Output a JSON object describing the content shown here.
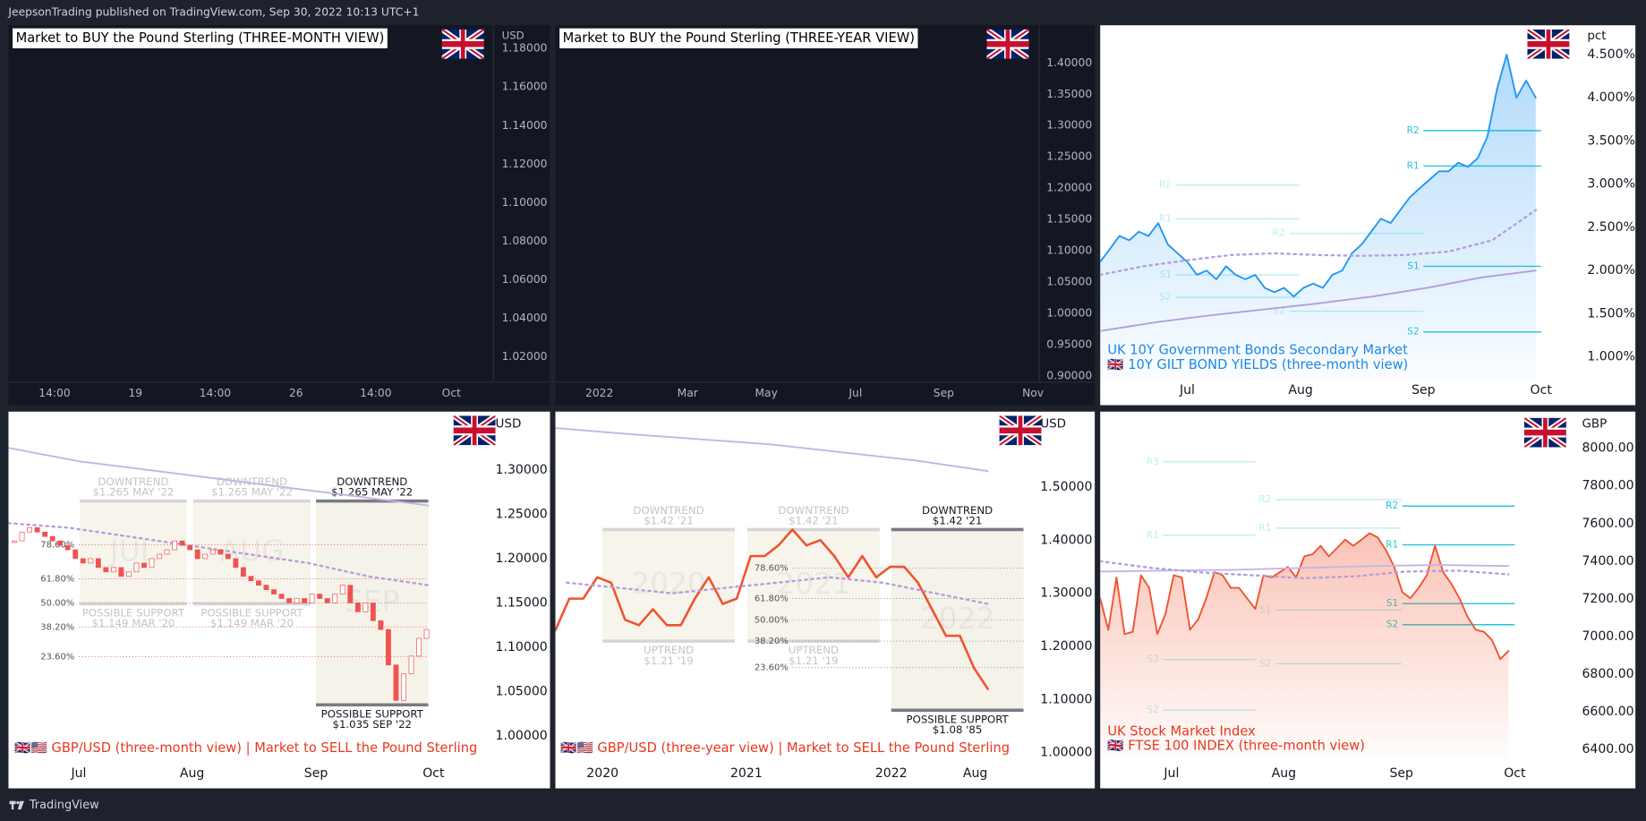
{
  "header": {
    "text": "JeepsonTrading published on TradingView.com, Sep 30, 2022 10:13 UTC+1"
  },
  "footer": {
    "brand": "TradingView"
  },
  "panels": [
    {
      "theme": "dark",
      "title": "Market to BUY the Pound Sterling (THREE-MONTH VIEW)",
      "unit": "USD",
      "ylim": [
        1.0069,
        1.1921
      ],
      "yticks": [
        {
          "value": 1.18,
          "label": "1.18000"
        },
        {
          "value": 1.16,
          "label": "1.16000"
        },
        {
          "value": 1.14,
          "label": "1.14000"
        },
        {
          "value": 1.12,
          "label": "1.12000"
        },
        {
          "value": 1.1,
          "label": "1.10000"
        },
        {
          "value": 1.08,
          "label": "1.08000"
        },
        {
          "value": 1.06,
          "label": "1.06000"
        },
        {
          "value": 1.04,
          "label": "1.04000"
        },
        {
          "value": 1.02,
          "label": "1.02000"
        }
      ],
      "xticks": [
        "14:00",
        "19",
        "14:00",
        "26",
        "14:00",
        "Oct"
      ]
    },
    {
      "theme": "dark",
      "title": "Market to BUY the Pound Sterling (THREE-YEAR VIEW)",
      "ylim": [
        0.8899,
        1.4604
      ],
      "yticks": [
        {
          "value": 1.4,
          "label": "1.40000"
        },
        {
          "value": 1.35,
          "label": "1.35000"
        },
        {
          "value": 1.3,
          "label": "1.30000"
        },
        {
          "value": 1.25,
          "label": "1.25000"
        },
        {
          "value": 1.2,
          "label": "1.20000"
        },
        {
          "value": 1.15,
          "label": "1.15000"
        },
        {
          "value": 1.1,
          "label": "1.10000"
        },
        {
          "value": 1.05,
          "label": "1.05000"
        },
        {
          "value": 1,
          "label": "1.00000"
        },
        {
          "value": 0.95,
          "label": "0.95000"
        },
        {
          "value": 0.9,
          "label": "0.90000"
        }
      ],
      "xticks": [
        "2022",
        "Mar",
        "May",
        "Jul",
        "Sep",
        "Nov"
      ]
    },
    {
      "theme": "light",
      "unit": "pct",
      "ylim": [
        0.733,
        4.84
      ],
      "yticks": [
        {
          "value": 4.5,
          "label": "4.500%"
        },
        {
          "value": 4,
          "label": "4.000%"
        },
        {
          "value": 3.5,
          "label": "3.500%"
        },
        {
          "value": 3,
          "label": "3.000%"
        },
        {
          "value": 2.5,
          "label": "2.500%"
        },
        {
          "value": 2,
          "label": "2.000%"
        },
        {
          "value": 1.5,
          "label": "1.500%"
        },
        {
          "value": 1,
          "label": "1.000%"
        }
      ],
      "xticks": [
        "Jul",
        "Aug",
        "Sep",
        "Oct"
      ],
      "captions": [
        "UK 10Y Government Bonds Secondary Market",
        "🇬🇧 10Y GILT BOND YIELDS (three-month view)"
      ],
      "caption_color": "#1e88e5",
      "series": [
        {
          "color": "#2196f3",
          "style": "solid",
          "area": true,
          "values": [
            2.1,
            2.25,
            2.4,
            2.35,
            2.45,
            2.4,
            2.55,
            2.3,
            2.2,
            2.1,
            1.95,
            2.0,
            1.9,
            2.05,
            1.95,
            1.9,
            1.95,
            1.8,
            1.75,
            1.8,
            1.7,
            1.8,
            1.85,
            1.8,
            1.95,
            2.0,
            2.2,
            2.3,
            2.45,
            2.6,
            2.55,
            2.7,
            2.85,
            2.95,
            3.05,
            3.15,
            3.15,
            3.25,
            3.2,
            3.3,
            3.55,
            4.1,
            4.5,
            4.0,
            4.2,
            4.0
          ]
        },
        {
          "color": "#b39ddb",
          "style": "dotted",
          "values": [
            1.95,
            2.05,
            2.12,
            2.18,
            2.2,
            2.18,
            2.17,
            2.18,
            2.22,
            2.35,
            2.7
          ]
        },
        {
          "color": "#b39ddb",
          "style": "solid",
          "values": [
            1.3,
            1.4,
            1.48,
            1.55,
            1.62,
            1.7,
            1.8,
            1.92,
            2.0
          ]
        }
      ],
      "pivot_color": "#26c6da",
      "pivots": [
        {
          "faded": true,
          "labels": [
            "R2",
            "R1",
            "S1",
            "S2"
          ],
          "values": [
            2.99,
            2.6,
            1.95,
            1.69
          ]
        },
        {
          "faded": true,
          "labels": [
            "R2",
            "S2"
          ],
          "values": [
            2.43,
            1.53
          ]
        },
        {
          "faded": false,
          "labels": [
            "R2",
            "R1",
            "S1",
            "S2"
          ],
          "values": [
            3.62,
            3.21,
            2.05,
            1.29
          ]
        }
      ]
    },
    {
      "theme": "light",
      "unit": "USD",
      "ylim": [
        0.975,
        1.366
      ],
      "yticks": [
        {
          "value": 1.3,
          "label": "1.30000"
        },
        {
          "value": 1.25,
          "label": "1.25000"
        },
        {
          "value": 1.2,
          "label": "1.20000"
        },
        {
          "value": 1.15,
          "label": "1.15000"
        },
        {
          "value": 1.1,
          "label": "1.10000"
        },
        {
          "value": 1.05,
          "label": "1.05000"
        },
        {
          "value": 1,
          "label": "1.00000"
        }
      ],
      "xticks": [
        "Jul",
        "Aug",
        "Sep",
        "Oct"
      ],
      "captions": [
        "🇬🇧🇺🇸 GBP/USD (three-month view) | Market to SELL the Pound Sterling"
      ],
      "caption_color": "#e5391f",
      "series": [
        {
          "color": "#c5b3e6",
          "style": "solid",
          "values": [
            1.325,
            1.31,
            1.3,
            1.29,
            1.28,
            1.27,
            1.26
          ]
        },
        {
          "color": "#b39ddb",
          "style": "dotted",
          "values": [
            1.24,
            1.235,
            1.225,
            1.215,
            1.205,
            1.195,
            1.18,
            1.17
          ]
        }
      ],
      "candles": {
        "up_color": "#ffffff",
        "down_color": "#ef5350",
        "values": [
          1.22,
          1.23,
          1.235,
          1.23,
          1.225,
          1.22,
          1.215,
          1.21,
          1.2,
          1.195,
          1.2,
          1.19,
          1.185,
          1.19,
          1.18,
          1.185,
          1.195,
          1.19,
          1.2,
          1.205,
          1.21,
          1.22,
          1.215,
          1.21,
          1.2,
          1.205,
          1.21,
          1.205,
          1.2,
          1.19,
          1.18,
          1.175,
          1.17,
          1.165,
          1.16,
          1.155,
          1.15,
          1.155,
          1.15,
          1.16,
          1.155,
          1.15,
          1.16,
          1.17,
          1.15,
          1.14,
          1.15,
          1.13,
          1.12,
          1.08,
          1.04,
          1.07,
          1.09,
          1.11,
          1.12
        ]
      },
      "boxes": [
        {
          "faded": true,
          "high": 1.265,
          "low": 1.149,
          "watermark": "JUL",
          "top_label": [
            "DOWNTREND",
            "$1.265 MAY '22"
          ],
          "bottom_label": [
            "POSSIBLE SUPPORT",
            "$1.149 MAR '20"
          ]
        },
        {
          "faded": true,
          "high": 1.265,
          "low": 1.149,
          "watermark": "AUG",
          "top_label": [
            "DOWNTREND",
            "$1.265 MAY '22"
          ],
          "bottom_label": [
            "POSSIBLE SUPPORT",
            "$1.149 MAR '20"
          ]
        },
        {
          "faded": false,
          "high": 1.265,
          "low": 1.035,
          "watermark": "SEP",
          "top_label": [
            "DOWNTREND",
            "$1.265 MAY '22"
          ],
          "bottom_label": [
            "POSSIBLE SUPPORT",
            "$1.035 SEP '22"
          ]
        }
      ],
      "fibs": {
        "box": 2,
        "color": "#e57373",
        "levels": [
          {
            "value": 78.6,
            "label": "78.60%"
          },
          {
            "value": 61.8,
            "label": "61.80%"
          },
          {
            "value": 50,
            "label": "50.00%"
          },
          {
            "value": 38.2,
            "label": "38.20%"
          },
          {
            "value": 23.6,
            "label": "23.60%"
          }
        ]
      }
    },
    {
      "theme": "light",
      "unit": "USD",
      "ylim": [
        0.99,
        1.642
      ],
      "yticks": [
        {
          "value": 1.5,
          "label": "1.50000"
        },
        {
          "value": 1.4,
          "label": "1.40000"
        },
        {
          "value": 1.3,
          "label": "1.30000"
        },
        {
          "value": 1.2,
          "label": "1.20000"
        },
        {
          "value": 1.1,
          "label": "1.10000"
        },
        {
          "value": 1,
          "label": "1.00000"
        }
      ],
      "xticks": [
        "2020",
        "2021",
        "2022",
        "Aug"
      ],
      "captions": [
        "🇬🇧🇺🇸 GBP/USD (three-year view) | Market to SELL the Pound Sterling"
      ],
      "caption_color": "#e5391f",
      "series": [
        {
          "color": "#f0532f",
          "style": "solid",
          "width": 2.2,
          "values": [
            1.23,
            1.29,
            1.29,
            1.33,
            1.32,
            1.25,
            1.24,
            1.27,
            1.24,
            1.24,
            1.29,
            1.33,
            1.28,
            1.29,
            1.37,
            1.37,
            1.39,
            1.42,
            1.39,
            1.4,
            1.37,
            1.33,
            1.37,
            1.33,
            1.35,
            1.35,
            1.32,
            1.27,
            1.22,
            1.22,
            1.16,
            1.12
          ]
        },
        {
          "color": "#c5b3e6",
          "style": "solid",
          "values": [
            1.611,
            1.6,
            1.59,
            1.58,
            1.565,
            1.55,
            1.53
          ]
        },
        {
          "color": "#b39ddb",
          "style": "dotted",
          "values": [
            1.32,
            1.31,
            1.3,
            1.31,
            1.32,
            1.33,
            1.32,
            1.3,
            1.28
          ]
        }
      ],
      "boxes": [
        {
          "faded": true,
          "high": 1.42,
          "low": 1.21,
          "watermark": "2020",
          "top_label": [
            "DOWNTREND",
            "$1.42 '21"
          ],
          "bottom_label": [
            "UPTREND",
            "$1.21 '19"
          ]
        },
        {
          "faded": true,
          "high": 1.42,
          "low": 1.21,
          "watermark": "2021",
          "top_label": [
            "DOWNTREND",
            "$1.42 '21"
          ],
          "bottom_label": [
            "UPTREND",
            "$1.21 '19"
          ]
        },
        {
          "faded": false,
          "high": 1.42,
          "low": 1.08,
          "watermark": "2022",
          "top_label": [
            "DOWNTREND",
            "$1.42 '21"
          ],
          "bottom_label": [
            "POSSIBLE SUPPORT",
            "$1.08 '85"
          ]
        }
      ],
      "fibs": {
        "box": 2,
        "color": "#9e9e9e",
        "levels": [
          {
            "value": 78.6,
            "label": "78.60%"
          },
          {
            "value": 61.8,
            "label": "61.80%"
          },
          {
            "value": 50,
            "label": "50.00%"
          },
          {
            "value": 38.2,
            "label": "38.20%"
          },
          {
            "value": 23.6,
            "label": "23.60%"
          }
        ]
      }
    },
    {
      "theme": "light",
      "unit": "GBP",
      "ylim": [
        6355,
        8195
      ],
      "yticks": [
        {
          "value": 8000,
          "label": "8000.00"
        },
        {
          "value": 7800,
          "label": "7800.00"
        },
        {
          "value": 7600,
          "label": "7600.00"
        },
        {
          "value": 7400,
          "label": "7400.00"
        },
        {
          "value": 7200,
          "label": "7200.00"
        },
        {
          "value": 7000,
          "label": "7000.00"
        },
        {
          "value": 6800,
          "label": "6800.00"
        },
        {
          "value": 6600,
          "label": "6600.00"
        },
        {
          "value": 6400,
          "label": "6400.00"
        }
      ],
      "xticks": [
        "Jul",
        "Aug",
        "Sep",
        "Oct"
      ],
      "captions": [
        "UK Stock Market Index",
        "🇬🇧 FTSE 100 INDEX (three-month view)"
      ],
      "caption_color": "#e5391f",
      "series": [
        {
          "color": "#f0532f",
          "style": "solid",
          "area": true,
          "values": [
            7203,
            7036,
            7314,
            7013,
            7025,
            7326,
            7259,
            7013,
            7119,
            7326,
            7314,
            7036,
            7091,
            7203,
            7342,
            7326,
            7259,
            7259,
            7203,
            7147,
            7326,
            7314,
            7342,
            7370,
            7314,
            7426,
            7437,
            7482,
            7426,
            7470,
            7515,
            7482,
            7515,
            7549,
            7526,
            7459,
            7370,
            7236,
            7203,
            7259,
            7326,
            7482,
            7342,
            7281,
            7203,
            7103,
            7036,
            7025,
            6980,
            6880,
            6924
          ]
        },
        {
          "color": "#c5b3e6",
          "style": "solid",
          "values": [
            7345,
            7350,
            7355,
            7365,
            7375,
            7380,
            7375
          ]
        },
        {
          "color": "#b39ddb",
          "style": "dotted",
          "values": [
            7400,
            7365,
            7340,
            7325,
            7310,
            7320,
            7345,
            7350,
            7330
          ]
        }
      ],
      "pivot_color": "#26c6da",
      "pivots": [
        {
          "faded": true,
          "labels": [
            "R3",
            "R1",
            "S3",
            "S2"
          ],
          "values": [
            7928,
            7538,
            6878,
            6610
          ]
        },
        {
          "faded": true,
          "labels": [
            "R2",
            "R1",
            "S1",
            "S2"
          ],
          "values": [
            7727,
            7576,
            7141,
            6856
          ]
        },
        {
          "faded": false,
          "labels": [
            "R2",
            "R1",
            "S1",
            "S2"
          ],
          "values": [
            7693,
            7487,
            7175,
            7063
          ]
        }
      ]
    }
  ]
}
